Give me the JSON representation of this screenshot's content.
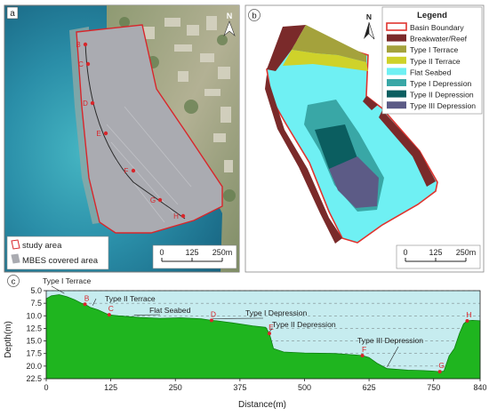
{
  "panels": {
    "a": {
      "label": "a",
      "north": "N",
      "profile_points": [
        "B",
        "C",
        "D",
        "E",
        "F",
        "G",
        "H"
      ],
      "legend": [
        "study area",
        "MBES covered area"
      ],
      "scalebar": {
        "ticks": [
          "0",
          "125",
          "250m"
        ]
      },
      "colors": {
        "sea_deep": "#1d6c8a",
        "sea_shallow": "#3fa9b8",
        "land": "#9aa07f",
        "survey": "#a9aab0",
        "boundary": "#d8262b"
      }
    },
    "b": {
      "label": "b",
      "north": "N",
      "legend_title": "Legend",
      "legend": [
        {
          "label": "Basin Boundary",
          "color": "#e0342f",
          "kind": "line"
        },
        {
          "label": "Breakwater/Reef",
          "color": "#7a2a2a",
          "kind": "fill"
        },
        {
          "label": "Type I Terrace",
          "color": "#a4a23c",
          "kind": "fill"
        },
        {
          "label": "Type II Terrace",
          "color": "#cfd22a",
          "kind": "fill"
        },
        {
          "label": "Flat Seabed",
          "color": "#6ff0f3",
          "kind": "fill"
        },
        {
          "label": "Type I Depression",
          "color": "#39a7a6",
          "kind": "fill"
        },
        {
          "label": "Type II Depression",
          "color": "#0b5e60",
          "kind": "fill"
        },
        {
          "label": "Type III Depression",
          "color": "#5c5b86",
          "kind": "fill"
        }
      ],
      "scalebar": {
        "ticks": [
          "0",
          "125",
          "250m"
        ]
      }
    },
    "c": {
      "label": "c",
      "ylabel": "Depth(m)",
      "xlabel": "Distance(m)",
      "x_ticks": [
        "0",
        "125",
        "250",
        "375",
        "500",
        "625",
        "750",
        "840"
      ],
      "y_ticks": [
        "5.0",
        "7.5",
        "10.0",
        "12.5",
        "15.0",
        "17.5",
        "20.0",
        "22.5"
      ],
      "annotations": [
        "Type I Terrace",
        "Type II Terrace",
        "Flat Seabed",
        "Type I Depression",
        "Type II Depression",
        "Type III Depression"
      ],
      "points": [
        "B",
        "C",
        "D",
        "E",
        "F",
        "G",
        "H"
      ],
      "colors": {
        "profile": "#1fb51f",
        "water": "#c6ecef",
        "marker": "#d8262b"
      }
    }
  },
  "chart_data": {
    "type": "area",
    "title": "",
    "xlabel": "Distance(m)",
    "ylabel": "Depth(m)",
    "xlim": [
      0,
      840
    ],
    "ylim": [
      5.0,
      22.5
    ],
    "y_inverted": true,
    "x": [
      0,
      10,
      25,
      40,
      55,
      68,
      75,
      85,
      100,
      115,
      122,
      140,
      180,
      220,
      260,
      300,
      320,
      330,
      360,
      400,
      425,
      432,
      440,
      460,
      500,
      560,
      600,
      612,
      625,
      640,
      660,
      700,
      730,
      750,
      762,
      770,
      780,
      790,
      800,
      808,
      815,
      825,
      840
    ],
    "values": [
      6.6,
      6.0,
      5.8,
      6.2,
      6.8,
      7.5,
      7.7,
      8.3,
      8.8,
      9.5,
      9.8,
      10.0,
      10.3,
      10.5,
      10.4,
      10.6,
      10.9,
      11.0,
      11.4,
      12.0,
      12.3,
      13.5,
      16.5,
      17.2,
      17.4,
      17.5,
      17.8,
      17.9,
      18.3,
      19.4,
      20.5,
      20.8,
      20.9,
      21.0,
      21.1,
      21.0,
      18.0,
      16.5,
      13.5,
      11.6,
      11.0,
      10.9,
      11.0
    ],
    "point_labels": [
      {
        "label": "B",
        "x": 75,
        "y": 7.7
      },
      {
        "label": "C",
        "x": 122,
        "y": 9.8
      },
      {
        "label": "D",
        "x": 320,
        "y": 10.9
      },
      {
        "label": "E",
        "x": 432,
        "y": 13.5
      },
      {
        "label": "F",
        "x": 612,
        "y": 17.9
      },
      {
        "label": "G",
        "x": 762,
        "y": 21.1
      },
      {
        "label": "H",
        "x": 815,
        "y": 11.0
      }
    ],
    "grid": "horizontal-dashed"
  }
}
